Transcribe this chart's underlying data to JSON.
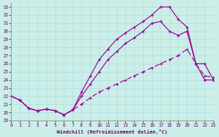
{
  "bg_color": "#cceee8",
  "line_color": "#990099",
  "grid_color": "#aaddda",
  "xlabel": "Windchill (Refroidissement éolien,°C)",
  "xlim": [
    0,
    23
  ],
  "ylim": [
    19,
    33.5
  ],
  "xticks": [
    0,
    1,
    2,
    3,
    4,
    5,
    6,
    7,
    8,
    9,
    10,
    11,
    12,
    13,
    14,
    15,
    16,
    17,
    18,
    19,
    20,
    21,
    22,
    23
  ],
  "yticks": [
    19,
    20,
    21,
    22,
    23,
    24,
    25,
    26,
    27,
    28,
    29,
    30,
    31,
    32,
    33
  ],
  "line1_x": [
    0,
    1,
    2,
    3,
    4,
    5,
    6,
    7,
    8,
    9,
    10,
    11,
    12,
    13,
    14,
    15,
    16,
    17,
    18,
    19,
    20,
    21,
    22,
    23
  ],
  "line1_y": [
    22.0,
    21.5,
    20.5,
    20.2,
    20.4,
    20.2,
    19.7,
    20.3,
    22.5,
    24.5,
    26.5,
    27.8,
    29.0,
    29.8,
    30.5,
    31.2,
    32.0,
    33.0,
    33.0,
    31.5,
    30.5,
    26.0,
    24.0,
    24.0
  ],
  "line2_x": [
    0,
    1,
    2,
    3,
    4,
    5,
    6,
    7,
    8,
    9,
    10,
    11,
    12,
    13,
    14,
    15,
    16,
    17,
    18,
    19,
    20,
    21,
    22,
    23
  ],
  "line2_y": [
    22.0,
    21.5,
    20.5,
    20.2,
    20.4,
    20.2,
    19.7,
    20.3,
    22.0,
    23.5,
    25.0,
    26.5,
    27.5,
    28.5,
    29.2,
    30.0,
    31.0,
    31.2,
    30.0,
    29.5,
    30.0,
    26.0,
    26.0,
    24.0
  ],
  "line3_x": [
    0,
    1,
    2,
    3,
    4,
    5,
    6,
    7,
    8,
    9,
    10,
    11,
    12,
    13,
    14,
    15,
    16,
    17,
    18,
    19,
    20,
    21,
    22,
    23
  ],
  "line3_y": [
    22.0,
    21.5,
    20.5,
    20.2,
    20.4,
    20.2,
    19.7,
    20.3,
    21.0,
    21.8,
    22.5,
    23.0,
    23.5,
    24.0,
    24.5,
    25.0,
    25.5,
    26.0,
    26.5,
    27.0,
    27.8,
    26.0,
    24.5,
    24.3
  ]
}
